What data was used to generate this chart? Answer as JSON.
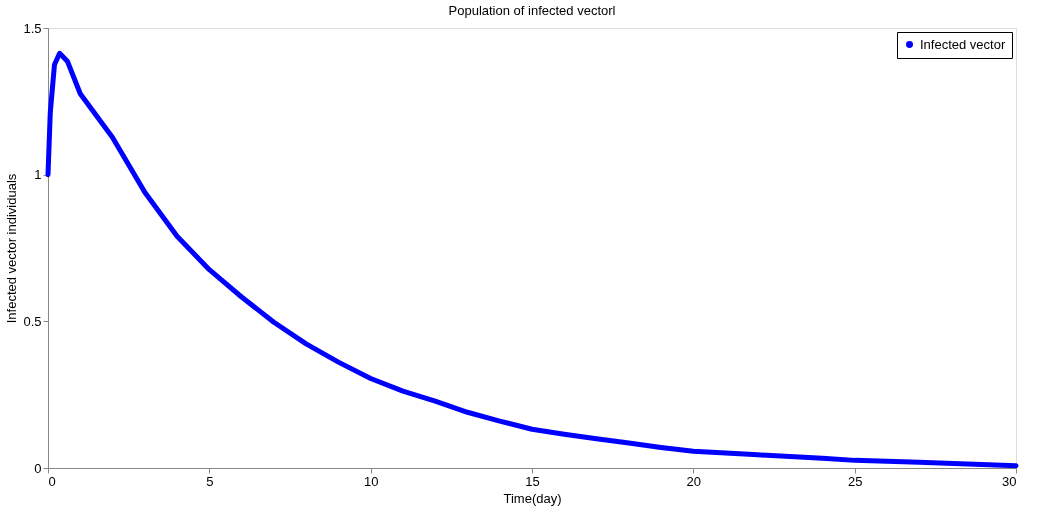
{
  "chart_data": {
    "type": "line",
    "title": "Population of infected vectorl",
    "xlabel": "Time(day)",
    "ylabel": "Infected vector individuals",
    "x": [
      0,
      0.07,
      0.2,
      0.36,
      0.6,
      1,
      2,
      3,
      4,
      5,
      6,
      7,
      8,
      9,
      10,
      11,
      12,
      13,
      14,
      15,
      16,
      17,
      18,
      19,
      20,
      22,
      24,
      25,
      27,
      30
    ],
    "series": [
      {
        "name": "Infected vector",
        "color": "#0000ff",
        "values": [
          1,
          1.21,
          1.375,
          1.414,
          1.387,
          1.276,
          1.127,
          0.94,
          0.79,
          0.676,
          0.583,
          0.497,
          0.423,
          0.361,
          0.305,
          0.262,
          0.228,
          0.19,
          0.16,
          0.132,
          0.115,
          0.1,
          0.085,
          0.07,
          0.057,
          0.045,
          0.033,
          0.026,
          0.02,
          0.008
        ]
      }
    ],
    "xlim": [
      0,
      30
    ],
    "xticks": [
      0,
      5,
      10,
      15,
      20,
      25,
      30
    ],
    "ylim": [
      0,
      1.5
    ],
    "yticks": [
      0,
      0.5,
      1,
      1.5
    ],
    "grid": false,
    "legend": "top right",
    "line_style": "solid"
  }
}
